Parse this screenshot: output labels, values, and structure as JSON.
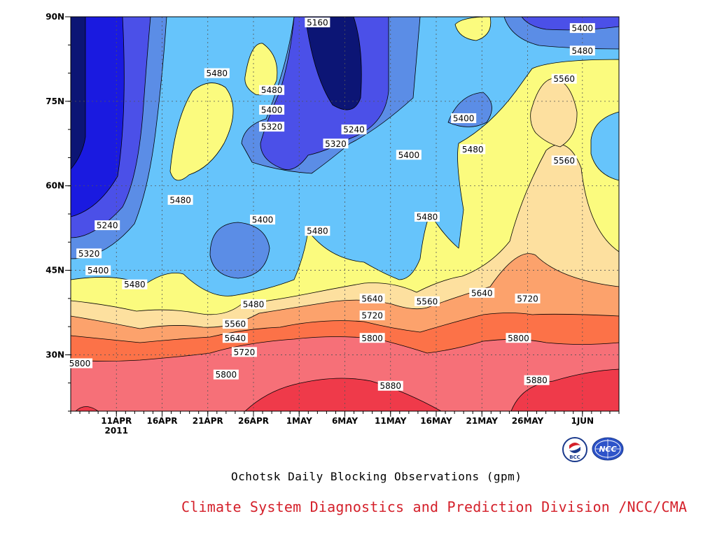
{
  "chart_data": {
    "type": "heatmap",
    "title": "Ochotsk Daily Blocking Observations (gpm)",
    "xlabel": "",
    "ylabel": "",
    "x_ticks": [
      "11APR",
      "16APR",
      "21APR",
      "26APR",
      "1MAY",
      "6MAY",
      "11MAY",
      "16MAY",
      "21MAY",
      "26MAY",
      "1JUN"
    ],
    "x_year": "2011",
    "y_ticks": [
      "90N",
      "75N",
      "60N",
      "45N",
      "30N"
    ],
    "y_tick_values": [
      90,
      75,
      60,
      45,
      30
    ],
    "ylim": [
      20,
      90
    ],
    "x_range": [
      "2011-04-06",
      "2011-06-05"
    ],
    "grid": true,
    "contour_levels": [
      5160,
      5240,
      5320,
      5400,
      5480,
      5560,
      5640,
      5720,
      5800,
      5880
    ],
    "band_colors": [
      "#0c1575",
      "#1a1ae0",
      "#4b50e8",
      "#5b8de6",
      "#66c4fb",
      "#fbfb7e",
      "#fde09f",
      "#fca26c",
      "#fc7248",
      "#f67078",
      "#ef3a4a"
    ],
    "contour_labels": [
      {
        "text": "5160",
        "date": "2011-05-03",
        "lat": 89
      },
      {
        "text": "5400",
        "date": "2011-06-01",
        "lat": 88
      },
      {
        "text": "5480",
        "date": "2011-06-01",
        "lat": 84
      },
      {
        "text": "5480",
        "date": "2011-04-22",
        "lat": 80
      },
      {
        "text": "5480",
        "date": "2011-04-28",
        "lat": 77
      },
      {
        "text": "5400",
        "date": "2011-04-28",
        "lat": 73.5
      },
      {
        "text": "5320",
        "date": "2011-04-28",
        "lat": 70.5
      },
      {
        "text": "5560",
        "date": "2011-05-30",
        "lat": 79
      },
      {
        "text": "5400",
        "date": "2011-05-19",
        "lat": 72
      },
      {
        "text": "5240",
        "date": "2011-05-07",
        "lat": 70
      },
      {
        "text": "5320",
        "date": "2011-05-05",
        "lat": 67.5
      },
      {
        "text": "5480",
        "date": "2011-05-20",
        "lat": 66.5
      },
      {
        "text": "5400",
        "date": "2011-05-13",
        "lat": 65.5
      },
      {
        "text": "5560",
        "date": "2011-05-30",
        "lat": 64.5
      },
      {
        "text": "5480",
        "date": "2011-04-18",
        "lat": 57.5
      },
      {
        "text": "5400",
        "date": "2011-04-27",
        "lat": 54
      },
      {
        "text": "5480",
        "date": "2011-05-15",
        "lat": 54.5
      },
      {
        "text": "5240",
        "date": "2011-04-10",
        "lat": 53
      },
      {
        "text": "5480",
        "date": "2011-05-03",
        "lat": 52
      },
      {
        "text": "5320",
        "date": "2011-04-08",
        "lat": 48
      },
      {
        "text": "5400",
        "date": "2011-04-09",
        "lat": 45
      },
      {
        "text": "5480",
        "date": "2011-04-13",
        "lat": 42.5
      },
      {
        "text": "5480",
        "date": "2011-04-26",
        "lat": 39
      },
      {
        "text": "5640",
        "date": "2011-05-09",
        "lat": 40
      },
      {
        "text": "5560",
        "date": "2011-05-15",
        "lat": 39.5
      },
      {
        "text": "5640",
        "date": "2011-05-21",
        "lat": 41
      },
      {
        "text": "5720",
        "date": "2011-05-26",
        "lat": 40
      },
      {
        "text": "5720",
        "date": "2011-05-09",
        "lat": 37
      },
      {
        "text": "5560",
        "date": "2011-04-24",
        "lat": 35.5
      },
      {
        "text": "5640",
        "date": "2011-04-24",
        "lat": 33
      },
      {
        "text": "5800",
        "date": "2011-05-09",
        "lat": 33
      },
      {
        "text": "5800",
        "date": "2011-05-25",
        "lat": 33
      },
      {
        "text": "5720",
        "date": "2011-04-25",
        "lat": 30.5
      },
      {
        "text": "5800",
        "date": "2011-04-07",
        "lat": 28.5
      },
      {
        "text": "5800",
        "date": "2011-04-23",
        "lat": 26.5
      },
      {
        "text": "5880",
        "date": "2011-05-11",
        "lat": 24.5
      },
      {
        "text": "5880",
        "date": "2011-05-27",
        "lat": 25.5
      }
    ]
  },
  "footer": {
    "credit": "Climate System Diagnostics and Prediction Division /NCC/CMA",
    "logo_left": "BCC",
    "logo_right": "NCC"
  }
}
